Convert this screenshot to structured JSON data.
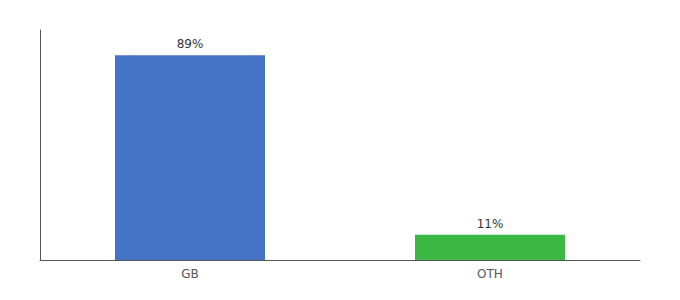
{
  "chart_data": {
    "type": "bar",
    "categories": [
      "GB",
      "OTH"
    ],
    "values": [
      89,
      11
    ],
    "value_labels": [
      "89%",
      "11%"
    ],
    "colors": [
      "#4472c4",
      "#3cb943"
    ],
    "ylim": [
      0,
      100
    ],
    "data_labels": true,
    "tick_labels": "x",
    "grid": false
  }
}
